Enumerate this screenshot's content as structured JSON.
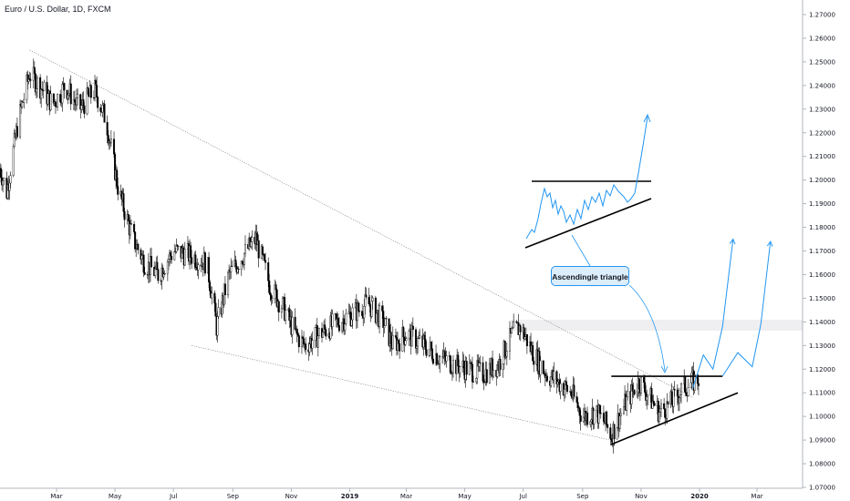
{
  "title": "Euro / U.S. Dollar, 1D, FXCM",
  "annotation": "Ascendingle triangle",
  "chart_data": {
    "type": "candlestick",
    "symbol": "Euro / U.S. Dollar",
    "interval": "1D",
    "source": "FXCM",
    "y_axis_ticks": [
      "1.27000",
      "1.26000",
      "1.25000",
      "1.24000",
      "1.23000",
      "1.22000",
      "1.21000",
      "1.20000",
      "1.19000",
      "1.18000",
      "1.17000",
      "1.16000",
      "1.15000",
      "1.14000",
      "1.13000",
      "1.12000",
      "1.11000",
      "1.10000",
      "1.09000",
      "1.08000",
      "1.07000"
    ],
    "x_axis_ticks": [
      {
        "label": "Mar",
        "bold": false
      },
      {
        "label": "May",
        "bold": false
      },
      {
        "label": "Jul",
        "bold": false
      },
      {
        "label": "Sep",
        "bold": false
      },
      {
        "label": "Nov",
        "bold": false
      },
      {
        "label": "2019",
        "bold": true
      },
      {
        "label": "Mar",
        "bold": false
      },
      {
        "label": "May",
        "bold": false
      },
      {
        "label": "Jul",
        "bold": false
      },
      {
        "label": "Sep",
        "bold": false
      },
      {
        "label": "Nov",
        "bold": false
      },
      {
        "label": "2020",
        "bold": true
      },
      {
        "label": "Mar",
        "bold": false
      }
    ],
    "ylim": [
      1.066,
      1.272
    ],
    "price_path": [
      [
        "2018-01-01",
        1.205
      ],
      [
        "2018-01-08",
        1.195
      ],
      [
        "2018-01-20",
        1.225
      ],
      [
        "2018-02-01",
        1.245
      ],
      [
        "2018-02-15",
        1.238
      ],
      [
        "2018-02-25",
        1.232
      ],
      [
        "2018-03-10",
        1.24
      ],
      [
        "2018-03-25",
        1.23
      ],
      [
        "2018-04-10",
        1.238
      ],
      [
        "2018-04-22",
        1.225
      ],
      [
        "2018-05-05",
        1.195
      ],
      [
        "2018-05-20",
        1.175
      ],
      [
        "2018-06-01",
        1.165
      ],
      [
        "2018-06-15",
        1.16
      ],
      [
        "2018-07-01",
        1.17
      ],
      [
        "2018-07-20",
        1.168
      ],
      [
        "2018-08-05",
        1.165
      ],
      [
        "2018-08-15",
        1.138
      ],
      [
        "2018-08-28",
        1.16
      ],
      [
        "2018-09-15",
        1.17
      ],
      [
        "2018-09-25",
        1.175
      ],
      [
        "2018-10-10",
        1.155
      ],
      [
        "2018-10-25",
        1.145
      ],
      [
        "2018-11-05",
        1.135
      ],
      [
        "2018-11-15",
        1.13
      ],
      [
        "2018-12-01",
        1.135
      ],
      [
        "2018-12-20",
        1.14
      ],
      [
        "2019-01-10",
        1.145
      ],
      [
        "2019-01-20",
        1.148
      ],
      [
        "2019-02-05",
        1.14
      ],
      [
        "2019-02-15",
        1.13
      ],
      [
        "2019-03-01",
        1.135
      ],
      [
        "2019-03-20",
        1.13
      ],
      [
        "2019-04-05",
        1.125
      ],
      [
        "2019-04-20",
        1.122
      ],
      [
        "2019-05-05",
        1.12
      ],
      [
        "2019-05-20",
        1.118
      ],
      [
        "2019-06-05",
        1.122
      ],
      [
        "2019-06-20",
        1.135
      ],
      [
        "2019-06-28",
        1.138
      ],
      [
        "2019-07-10",
        1.128
      ],
      [
        "2019-07-25",
        1.118
      ],
      [
        "2019-08-05",
        1.115
      ],
      [
        "2019-08-20",
        1.11
      ],
      [
        "2019-09-01",
        1.1
      ],
      [
        "2019-09-15",
        1.102
      ],
      [
        "2019-09-25",
        1.097
      ],
      [
        "2019-10-01",
        1.092
      ],
      [
        "2019-10-15",
        1.105
      ],
      [
        "2019-10-30",
        1.115
      ],
      [
        "2019-11-10",
        1.108
      ],
      [
        "2019-11-20",
        1.102
      ],
      [
        "2019-12-01",
        1.105
      ],
      [
        "2019-12-15",
        1.112
      ],
      [
        "2019-12-31",
        1.116
      ]
    ],
    "trendlines": [
      {
        "style": "dotted",
        "from": [
          "2018-02-01",
          1.255
        ],
        "to": [
          "2019-12-25",
          1.108
        ]
      },
      {
        "style": "dotted",
        "from": [
          "2018-07-20",
          1.13
        ],
        "to": [
          "2019-09-30",
          1.09
        ]
      },
      {
        "style": "solid",
        "from": [
          "2019-10-01",
          1.117
        ],
        "to": [
          "2020-01-25",
          1.117
        ]
      },
      {
        "style": "solid",
        "from": [
          "2019-09-30",
          1.088
        ],
        "to": [
          "2020-02-10",
          1.11
        ]
      }
    ],
    "resistance_zone": [
      1.137,
      1.141
    ],
    "projections": [
      {
        "points": [
          [
            "2019-12-25",
            1.112
          ],
          [
            "2020-01-05",
            1.126
          ],
          [
            "2020-01-15",
            1.12
          ],
          [
            "2020-01-25",
            1.138
          ],
          [
            "2020-02-05",
            1.175
          ]
        ]
      },
      {
        "points": [
          [
            "2020-01-25",
            1.117
          ],
          [
            "2020-02-10",
            1.127
          ],
          [
            "2020-02-25",
            1.121
          ],
          [
            "2020-03-05",
            1.139
          ],
          [
            "2020-03-15",
            1.174
          ]
        ]
      }
    ]
  }
}
